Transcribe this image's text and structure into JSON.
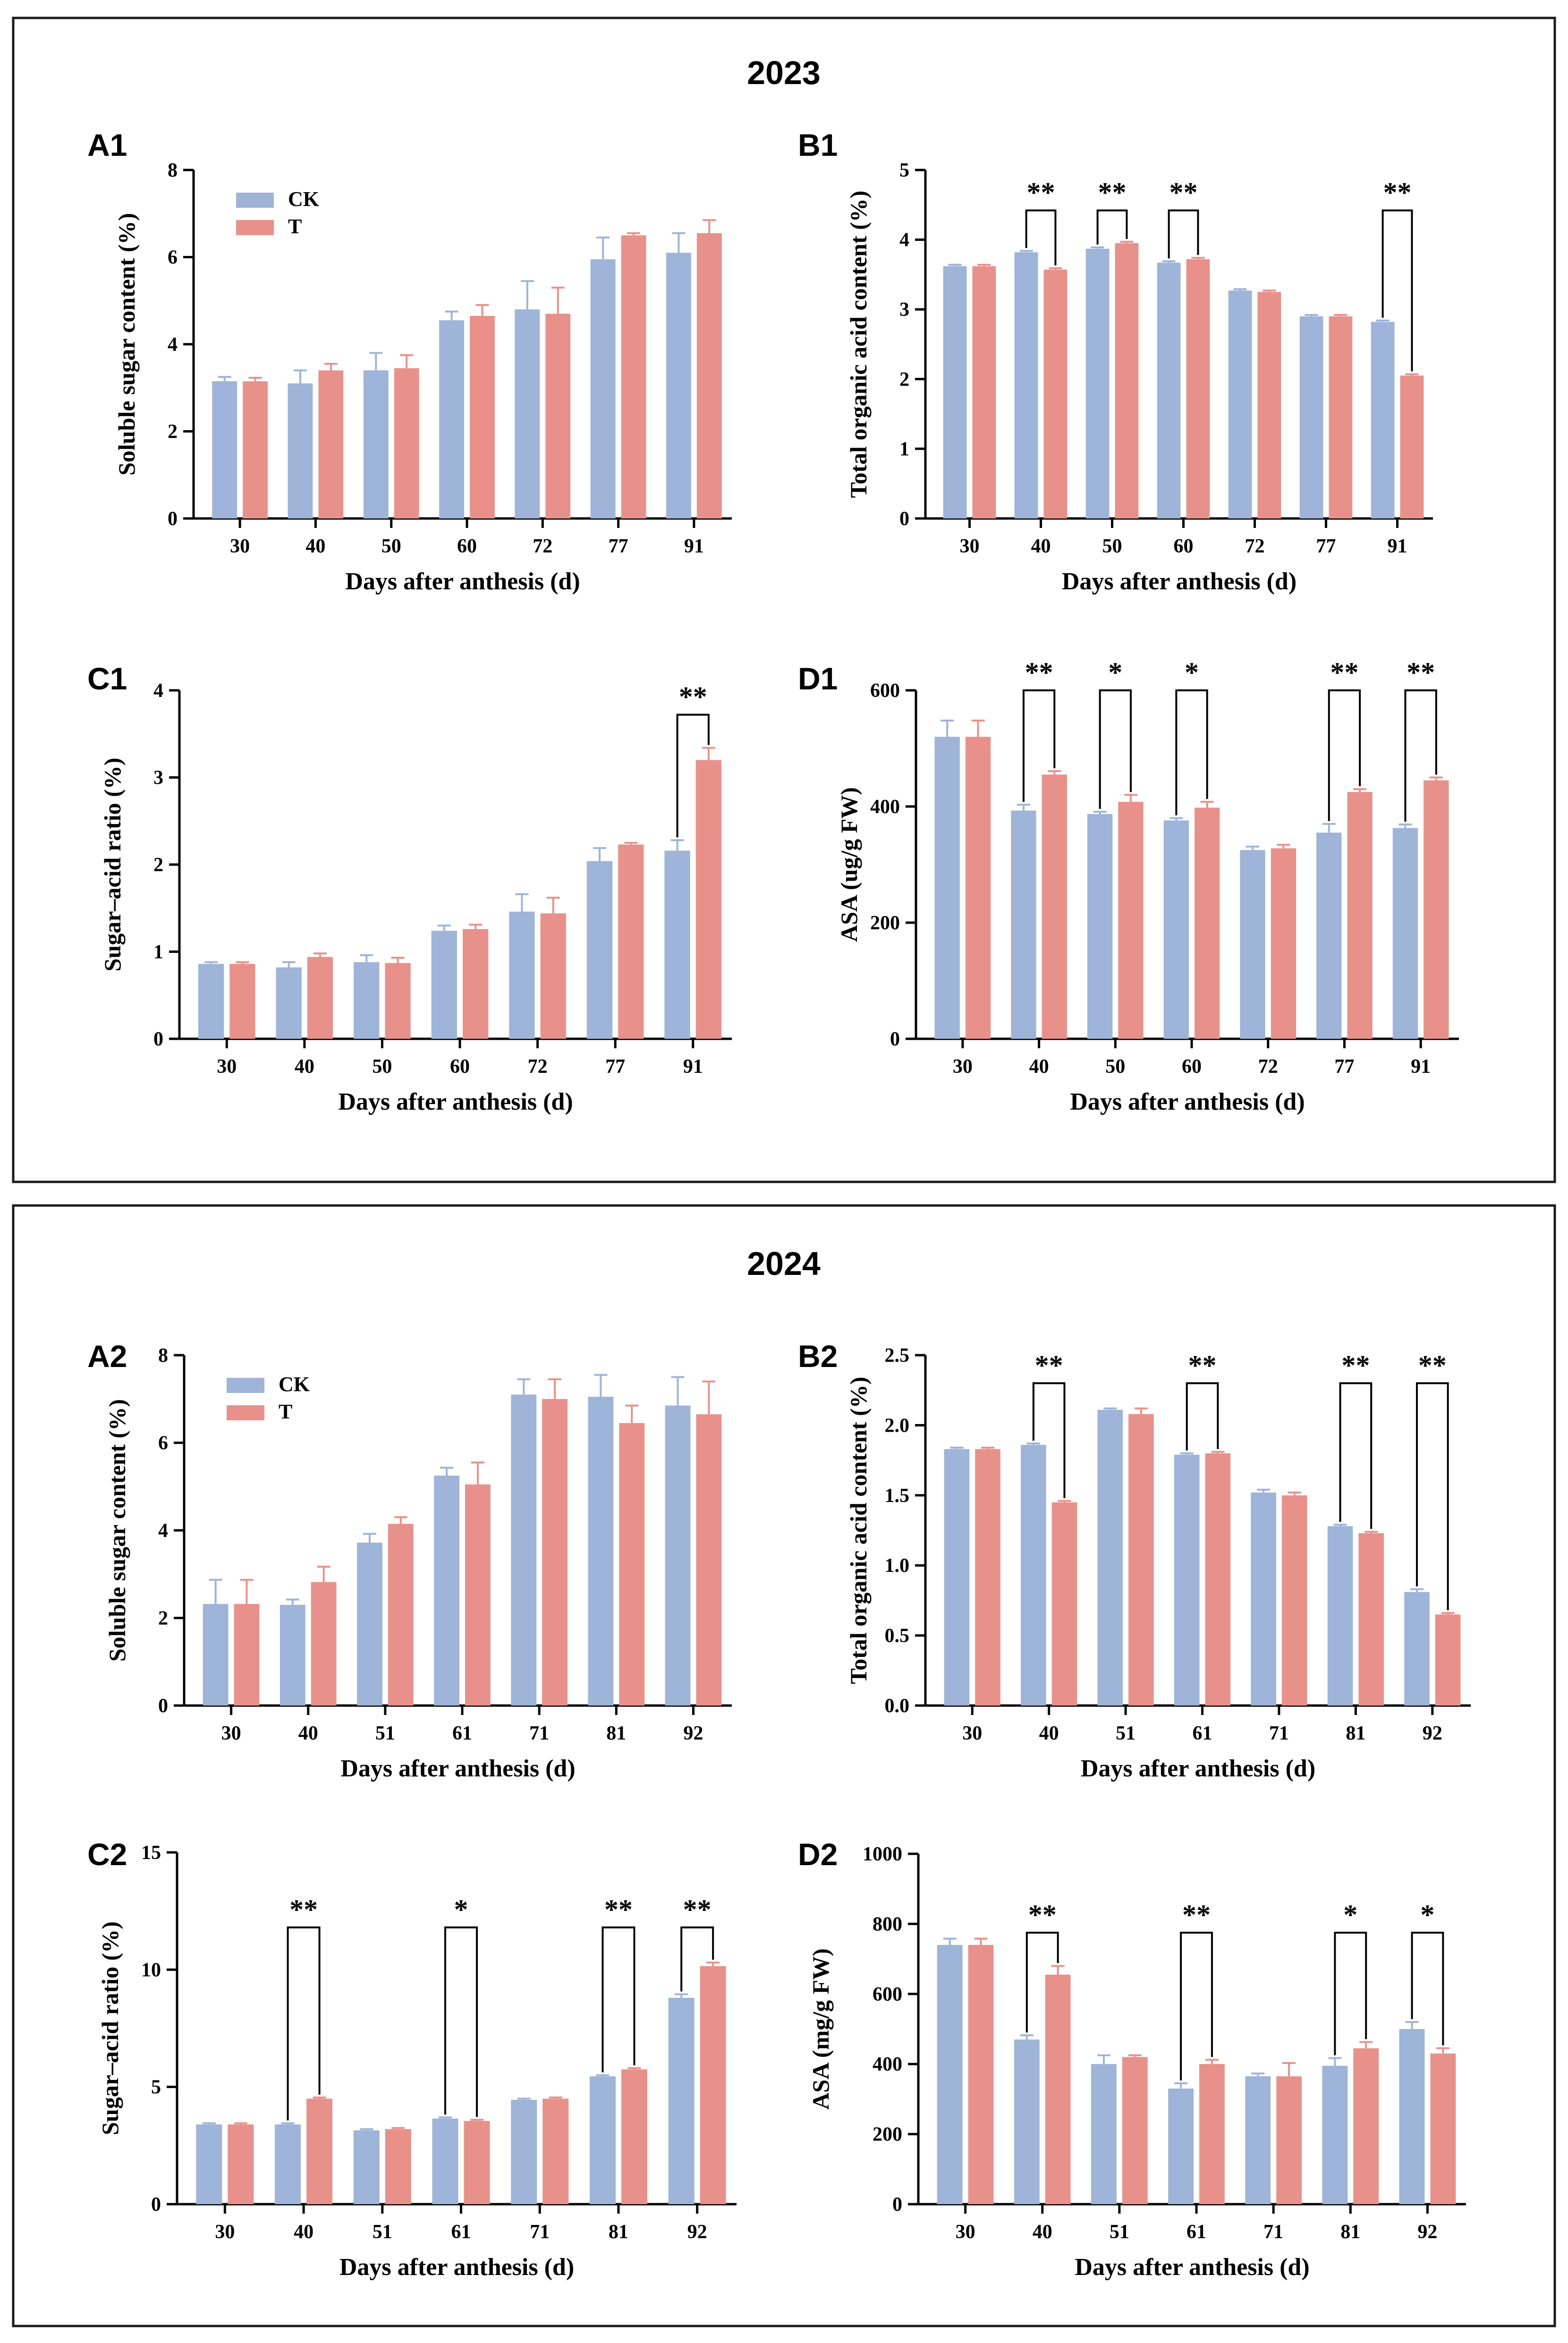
{
  "colors": {
    "ck": "#9eb4d8",
    "t": "#e8918b",
    "axis": "#000000",
    "frame": "#1a1a1a"
  },
  "legend": {
    "ck": "CK",
    "t": "T"
  },
  "sections": [
    {
      "title": "2023"
    },
    {
      "title": "2024"
    }
  ],
  "chart_data": [
    {
      "panel": "A1",
      "type": "bar",
      "section": "2023",
      "title": "",
      "xlabel": "Days after anthesis (d)",
      "ylabel": "Soluble sugar content (%)",
      "ylim": [
        0,
        8
      ],
      "yticks": [
        "0",
        "2",
        "4",
        "6",
        "8"
      ],
      "categories": [
        "30",
        "40",
        "50",
        "60",
        "72",
        "77",
        "91"
      ],
      "series": [
        {
          "name": "CK",
          "values": [
            3.15,
            3.1,
            3.4,
            4.55,
            4.8,
            5.95,
            6.1
          ],
          "errors": [
            0.1,
            0.3,
            0.4,
            0.2,
            0.65,
            0.5,
            0.45
          ]
        },
        {
          "name": "T",
          "values": [
            3.15,
            3.4,
            3.45,
            4.65,
            4.7,
            6.5,
            6.55
          ],
          "errors": [
            0.08,
            0.15,
            0.3,
            0.25,
            0.6,
            0.05,
            0.3
          ]
        }
      ],
      "significance": [],
      "legend": true
    },
    {
      "panel": "B1",
      "type": "bar",
      "section": "2023",
      "title": "",
      "xlabel": "Days after anthesis (d)",
      "ylabel": "Total organic acid content (%)",
      "ylim": [
        0,
        5
      ],
      "yticks": [
        "0",
        "1",
        "2",
        "3",
        "4",
        "5"
      ],
      "categories": [
        "30",
        "40",
        "50",
        "60",
        "72",
        "77",
        "91"
      ],
      "series": [
        {
          "name": "CK",
          "values": [
            3.62,
            3.82,
            3.87,
            3.67,
            3.27,
            2.9,
            2.82
          ],
          "errors": [
            0.02,
            0.02,
            0.02,
            0.02,
            0.02,
            0.02,
            0.02
          ]
        },
        {
          "name": "T",
          "values": [
            3.62,
            3.57,
            3.95,
            3.72,
            3.25,
            2.9,
            2.05
          ],
          "errors": [
            0.02,
            0.02,
            0.02,
            0.02,
            0.02,
            0.02,
            0.02
          ]
        }
      ],
      "significance": [
        {
          "index": 1,
          "label": "**",
          "bracket": 4.42
        },
        {
          "index": 2,
          "label": "**",
          "bracket": 4.42
        },
        {
          "index": 3,
          "label": "**",
          "bracket": 4.42
        },
        {
          "index": 6,
          "label": "**",
          "bracket": 4.42
        }
      ],
      "legend": false
    },
    {
      "panel": "C1",
      "type": "bar",
      "section": "2023",
      "title": "",
      "xlabel": "Days after anthesis (d)",
      "ylabel": "Sugar–acid ratio (%)",
      "ylim": [
        0,
        4
      ],
      "yticks": [
        "0",
        "1",
        "2",
        "3",
        "4"
      ],
      "categories": [
        "30",
        "40",
        "50",
        "60",
        "72",
        "77",
        "91"
      ],
      "series": [
        {
          "name": "CK",
          "values": [
            0.86,
            0.82,
            0.88,
            1.24,
            1.46,
            2.04,
            2.16
          ],
          "errors": [
            0.02,
            0.06,
            0.08,
            0.06,
            0.2,
            0.15,
            0.12
          ]
        },
        {
          "name": "T",
          "values": [
            0.86,
            0.94,
            0.87,
            1.26,
            1.44,
            2.23,
            3.2
          ],
          "errors": [
            0.02,
            0.04,
            0.06,
            0.05,
            0.18,
            0.02,
            0.14
          ]
        }
      ],
      "significance": [
        {
          "index": 6,
          "label": "**",
          "bracket": 3.72
        }
      ],
      "legend": false
    },
    {
      "panel": "D1",
      "type": "bar",
      "section": "2023",
      "title": "",
      "xlabel": "Days after anthesis (d)",
      "ylabel": "ASA (ug/g FW)",
      "ylim": [
        0,
        600
      ],
      "yticks": [
        "0",
        "200",
        "400",
        "600"
      ],
      "categories": [
        "30",
        "40",
        "50",
        "60",
        "72",
        "77",
        "91"
      ],
      "series": [
        {
          "name": "CK",
          "values": [
            520,
            393,
            387,
            376,
            325,
            355,
            363
          ],
          "errors": [
            28,
            10,
            4,
            4,
            6,
            15,
            6
          ]
        },
        {
          "name": "T",
          "values": [
            520,
            455,
            408,
            398,
            328,
            425,
            445
          ],
          "errors": [
            28,
            6,
            12,
            10,
            6,
            5,
            5
          ]
        }
      ],
      "significance": [
        {
          "index": 1,
          "label": "**",
          "bracket": 600
        },
        {
          "index": 2,
          "label": "*",
          "bracket": 600
        },
        {
          "index": 3,
          "label": "*",
          "bracket": 600
        },
        {
          "index": 5,
          "label": "**",
          "bracket": 600
        },
        {
          "index": 6,
          "label": "**",
          "bracket": 600
        }
      ],
      "legend": false
    },
    {
      "panel": "A2",
      "type": "bar",
      "section": "2024",
      "title": "",
      "xlabel": "Days after anthesis (d)",
      "ylabel": "Soluble sugar content (%)",
      "ylim": [
        0,
        8
      ],
      "yticks": [
        "0",
        "2",
        "4",
        "6",
        "8"
      ],
      "categories": [
        "30",
        "40",
        "51",
        "61",
        "71",
        "81",
        "92"
      ],
      "series": [
        {
          "name": "CK",
          "values": [
            2.32,
            2.3,
            3.72,
            5.25,
            7.1,
            7.05,
            6.85
          ],
          "errors": [
            0.55,
            0.12,
            0.2,
            0.18,
            0.35,
            0.5,
            0.65
          ]
        },
        {
          "name": "T",
          "values": [
            2.32,
            2.82,
            4.15,
            5.05,
            7.0,
            6.45,
            6.65
          ],
          "errors": [
            0.55,
            0.35,
            0.15,
            0.5,
            0.45,
            0.4,
            0.75
          ]
        }
      ],
      "significance": [],
      "legend": true
    },
    {
      "panel": "B2",
      "type": "bar",
      "section": "2024",
      "title": "",
      "xlabel": "Days after anthesis (d)",
      "ylabel": "Total organic acid content (%)",
      "ylim": [
        0,
        2.5
      ],
      "yticks": [
        "0.0",
        "0.5",
        "1.0",
        "1.5",
        "2.0",
        "2.5"
      ],
      "categories": [
        "30",
        "40",
        "51",
        "61",
        "71",
        "81",
        "92"
      ],
      "series": [
        {
          "name": "CK",
          "values": [
            1.83,
            1.86,
            2.11,
            1.79,
            1.52,
            1.28,
            0.81
          ],
          "errors": [
            0.01,
            0.01,
            0.01,
            0.01,
            0.02,
            0.01,
            0.02
          ]
        },
        {
          "name": "T",
          "values": [
            1.83,
            1.45,
            2.08,
            1.8,
            1.5,
            1.23,
            0.65
          ],
          "errors": [
            0.01,
            0.01,
            0.04,
            0.01,
            0.02,
            0.01,
            0.01
          ]
        }
      ],
      "significance": [
        {
          "index": 1,
          "label": "**",
          "bracket": 2.3
        },
        {
          "index": 3,
          "label": "**",
          "bracket": 2.3
        },
        {
          "index": 5,
          "label": "**",
          "bracket": 2.3
        },
        {
          "index": 6,
          "label": "**",
          "bracket": 2.3
        }
      ],
      "legend": false
    },
    {
      "panel": "C2",
      "type": "bar",
      "section": "2024",
      "title": "",
      "xlabel": "Days after anthesis (d)",
      "ylabel": "Sugar–acid ratio (%)",
      "ylim": [
        0,
        15
      ],
      "yticks": [
        "0",
        "5",
        "10",
        "15"
      ],
      "categories": [
        "30",
        "40",
        "51",
        "61",
        "71",
        "81",
        "92"
      ],
      "series": [
        {
          "name": "CK",
          "values": [
            3.4,
            3.4,
            3.15,
            3.65,
            4.45,
            5.45,
            8.8
          ],
          "errors": [
            0.05,
            0.05,
            0.05,
            0.05,
            0.05,
            0.05,
            0.15
          ]
        },
        {
          "name": "T",
          "values": [
            3.4,
            4.5,
            3.2,
            3.55,
            4.5,
            5.75,
            10.15
          ],
          "errors": [
            0.05,
            0.05,
            0.05,
            0.05,
            0.05,
            0.05,
            0.15
          ]
        }
      ],
      "significance": [
        {
          "index": 1,
          "label": "**",
          "bracket": 11.8
        },
        {
          "index": 3,
          "label": "*",
          "bracket": 11.8
        },
        {
          "index": 5,
          "label": "**",
          "bracket": 11.8
        },
        {
          "index": 6,
          "label": "**",
          "bracket": 11.8
        }
      ],
      "legend": false
    },
    {
      "panel": "D2",
      "type": "bar",
      "section": "2024",
      "title": "",
      "xlabel": "Days after anthesis (d)",
      "ylabel": "ASA (mg/g FW)",
      "ylim": [
        0,
        1000
      ],
      "yticks": [
        "0",
        "200",
        "400",
        "600",
        "800",
        "1000"
      ],
      "categories": [
        "30",
        "40",
        "51",
        "61",
        "71",
        "81",
        "92"
      ],
      "series": [
        {
          "name": "CK",
          "values": [
            740,
            470,
            400,
            330,
            365,
            395,
            500
          ],
          "errors": [
            18,
            12,
            25,
            15,
            8,
            22,
            20
          ]
        },
        {
          "name": "T",
          "values": [
            740,
            655,
            420,
            400,
            365,
            445,
            430
          ],
          "errors": [
            18,
            25,
            5,
            12,
            38,
            18,
            15
          ]
        }
      ],
      "significance": [
        {
          "index": 1,
          "label": "**",
          "bracket": 775
        },
        {
          "index": 3,
          "label": "**",
          "bracket": 775
        },
        {
          "index": 5,
          "label": "*",
          "bracket": 775
        },
        {
          "index": 6,
          "label": "*",
          "bracket": 775
        }
      ],
      "legend": false
    }
  ]
}
